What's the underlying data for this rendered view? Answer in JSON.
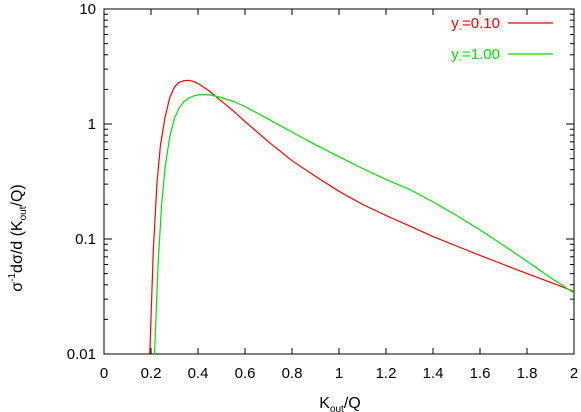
{
  "chart_data": {
    "type": "line",
    "xlabel": {
      "main": "K",
      "sub": "out",
      "tail": "/Q"
    },
    "ylabel": {
      "p1": "σ",
      "sup": "-1",
      "p2": "dσ/d (K",
      "sub": "out",
      "p3": "/Q)"
    },
    "xlim": [
      0,
      2
    ],
    "ylim": [
      0.01,
      10
    ],
    "yscale": "log",
    "grid": false,
    "legend_position": "top-right",
    "x_ticks": [
      {
        "v": 0,
        "label": "0"
      },
      {
        "v": 0.2,
        "label": "0.2"
      },
      {
        "v": 0.4,
        "label": "0.4"
      },
      {
        "v": 0.6,
        "label": "0.6"
      },
      {
        "v": 0.8,
        "label": "0.8"
      },
      {
        "v": 1,
        "label": "1"
      },
      {
        "v": 1.2,
        "label": "1.2"
      },
      {
        "v": 1.4,
        "label": "1.4"
      },
      {
        "v": 1.6,
        "label": "1.6"
      },
      {
        "v": 1.8,
        "label": "1.8"
      },
      {
        "v": 2,
        "label": "2"
      }
    ],
    "y_ticks": [
      {
        "v": 0.01,
        "label": "0.01"
      },
      {
        "v": 0.1,
        "label": "0.1"
      },
      {
        "v": 1,
        "label": "1"
      },
      {
        "v": 10,
        "label": "10"
      }
    ],
    "series": [
      {
        "name_main": "y",
        "name_sub": "-",
        "name_tail": "=0.10",
        "color": "#ff0000",
        "x": [
          0.195,
          0.21,
          0.225,
          0.24,
          0.26,
          0.28,
          0.3,
          0.32,
          0.34,
          0.36,
          0.38,
          0.4,
          0.42,
          0.45,
          0.5,
          0.55,
          0.6,
          0.7,
          0.8,
          0.9,
          1.0,
          1.1,
          1.2,
          1.3,
          1.4,
          1.5,
          1.6,
          1.7,
          1.8,
          1.9,
          2.0
        ],
        "y": [
          0.01,
          0.08,
          0.3,
          0.65,
          1.15,
          1.7,
          2.1,
          2.3,
          2.38,
          2.4,
          2.35,
          2.25,
          2.12,
          1.92,
          1.58,
          1.3,
          1.05,
          0.7,
          0.48,
          0.35,
          0.26,
          0.2,
          0.16,
          0.13,
          0.105,
          0.087,
          0.072,
          0.06,
          0.05,
          0.042,
          0.035
        ]
      },
      {
        "name_main": "y",
        "name_sub": "-",
        "name_tail": "=1.00",
        "color": "#00e000",
        "x": [
          0.215,
          0.23,
          0.245,
          0.26,
          0.28,
          0.3,
          0.32,
          0.34,
          0.36,
          0.38,
          0.4,
          0.42,
          0.45,
          0.5,
          0.55,
          0.6,
          0.7,
          0.8,
          0.9,
          1.0,
          1.1,
          1.2,
          1.3,
          1.4,
          1.5,
          1.6,
          1.7,
          1.8,
          1.9,
          2.0
        ],
        "y": [
          0.01,
          0.06,
          0.2,
          0.42,
          0.78,
          1.12,
          1.38,
          1.56,
          1.68,
          1.75,
          1.79,
          1.8,
          1.79,
          1.7,
          1.57,
          1.42,
          1.1,
          0.85,
          0.66,
          0.52,
          0.41,
          0.33,
          0.27,
          0.21,
          0.16,
          0.12,
          0.088,
          0.064,
          0.046,
          0.034
        ]
      }
    ]
  }
}
